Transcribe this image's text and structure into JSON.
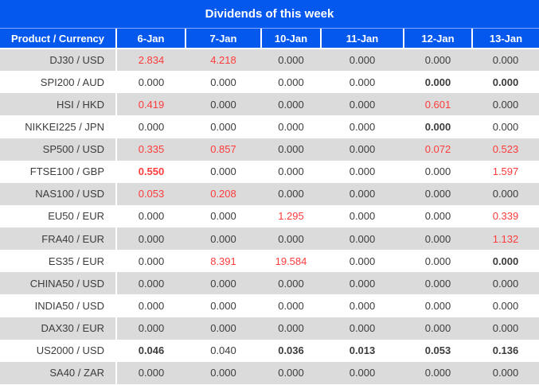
{
  "title": "Dividends of this week",
  "columns": [
    "Product / Currency",
    "6-Jan",
    "7-Jan",
    "10-Jan",
    "11-Jan",
    "12-Jan",
    "13-Jan"
  ],
  "colors": {
    "header_bg": "#0558ee",
    "header_text": "#ffffff",
    "row_bg": "#ffffff",
    "row_alt_bg": "#dbdbdb",
    "value_red": "#ff3b3b",
    "value_dark": "#3c3c3c"
  },
  "rows": [
    {
      "product": "DJ30 / USD",
      "values": [
        {
          "v": "2.834",
          "red": true
        },
        {
          "v": "4.218",
          "red": true
        },
        {
          "v": "0.000"
        },
        {
          "v": "0.000"
        },
        {
          "v": "0.000"
        },
        {
          "v": "0.000"
        }
      ]
    },
    {
      "product": "SPI200 / AUD",
      "values": [
        {
          "v": "0.000"
        },
        {
          "v": "0.000"
        },
        {
          "v": "0.000"
        },
        {
          "v": "0.000"
        },
        {
          "v": "0.000",
          "bold": true
        },
        {
          "v": "0.000",
          "bold": true
        }
      ]
    },
    {
      "product": "HSI / HKD",
      "values": [
        {
          "v": "0.419",
          "red": true
        },
        {
          "v": "0.000"
        },
        {
          "v": "0.000"
        },
        {
          "v": "0.000"
        },
        {
          "v": "0.601",
          "red": true
        },
        {
          "v": "0.000"
        }
      ]
    },
    {
      "product": "NIKKEI225 / JPN",
      "values": [
        {
          "v": "0.000"
        },
        {
          "v": "0.000"
        },
        {
          "v": "0.000"
        },
        {
          "v": "0.000"
        },
        {
          "v": "0.000",
          "bold": true
        },
        {
          "v": "0.000"
        }
      ]
    },
    {
      "product": "SP500 / USD",
      "values": [
        {
          "v": "0.335",
          "red": true
        },
        {
          "v": "0.857",
          "red": true
        },
        {
          "v": "0.000"
        },
        {
          "v": "0.000"
        },
        {
          "v": "0.072",
          "red": true
        },
        {
          "v": "0.523",
          "red": true
        }
      ]
    },
    {
      "product": "FTSE100 / GBP",
      "values": [
        {
          "v": "0.550",
          "red": true,
          "bold": true
        },
        {
          "v": "0.000"
        },
        {
          "v": "0.000"
        },
        {
          "v": "0.000"
        },
        {
          "v": "0.000"
        },
        {
          "v": "1.597",
          "red": true
        }
      ]
    },
    {
      "product": "NAS100 / USD",
      "values": [
        {
          "v": "0.053",
          "red": true
        },
        {
          "v": "0.208",
          "red": true
        },
        {
          "v": "0.000"
        },
        {
          "v": "0.000"
        },
        {
          "v": "0.000"
        },
        {
          "v": "0.000"
        }
      ]
    },
    {
      "product": "EU50 / EUR",
      "values": [
        {
          "v": "0.000"
        },
        {
          "v": "0.000"
        },
        {
          "v": "1.295",
          "red": true
        },
        {
          "v": "0.000"
        },
        {
          "v": "0.000"
        },
        {
          "v": "0.339",
          "red": true
        }
      ]
    },
    {
      "product": "FRA40 / EUR",
      "values": [
        {
          "v": "0.000"
        },
        {
          "v": "0.000"
        },
        {
          "v": "0.000"
        },
        {
          "v": "0.000"
        },
        {
          "v": "0.000"
        },
        {
          "v": "1.132",
          "red": true
        }
      ]
    },
    {
      "product": "ES35 / EUR",
      "values": [
        {
          "v": "0.000"
        },
        {
          "v": "8.391",
          "red": true
        },
        {
          "v": "19.584",
          "red": true
        },
        {
          "v": "0.000"
        },
        {
          "v": "0.000"
        },
        {
          "v": "0.000",
          "bold": true
        }
      ]
    },
    {
      "product": "CHINA50 / USD",
      "values": [
        {
          "v": "0.000"
        },
        {
          "v": "0.000"
        },
        {
          "v": "0.000"
        },
        {
          "v": "0.000"
        },
        {
          "v": "0.000"
        },
        {
          "v": "0.000"
        }
      ]
    },
    {
      "product": "INDIA50 / USD",
      "values": [
        {
          "v": "0.000"
        },
        {
          "v": "0.000"
        },
        {
          "v": "0.000"
        },
        {
          "v": "0.000"
        },
        {
          "v": "0.000"
        },
        {
          "v": "0.000"
        }
      ]
    },
    {
      "product": "DAX30 / EUR",
      "values": [
        {
          "v": "0.000"
        },
        {
          "v": "0.000"
        },
        {
          "v": "0.000"
        },
        {
          "v": "0.000"
        },
        {
          "v": "0.000"
        },
        {
          "v": "0.000"
        }
      ]
    },
    {
      "product": "US2000 / USD",
      "values": [
        {
          "v": "0.046",
          "bold": true
        },
        {
          "v": "0.040"
        },
        {
          "v": "0.036",
          "bold": true
        },
        {
          "v": "0.013",
          "bold": true
        },
        {
          "v": "0.053",
          "bold": true
        },
        {
          "v": "0.136",
          "bold": true
        }
      ]
    },
    {
      "product": "SA40 / ZAR",
      "values": [
        {
          "v": "0.000"
        },
        {
          "v": "0.000"
        },
        {
          "v": "0.000"
        },
        {
          "v": "0.000"
        },
        {
          "v": "0.000"
        },
        {
          "v": "0.000"
        }
      ]
    }
  ]
}
